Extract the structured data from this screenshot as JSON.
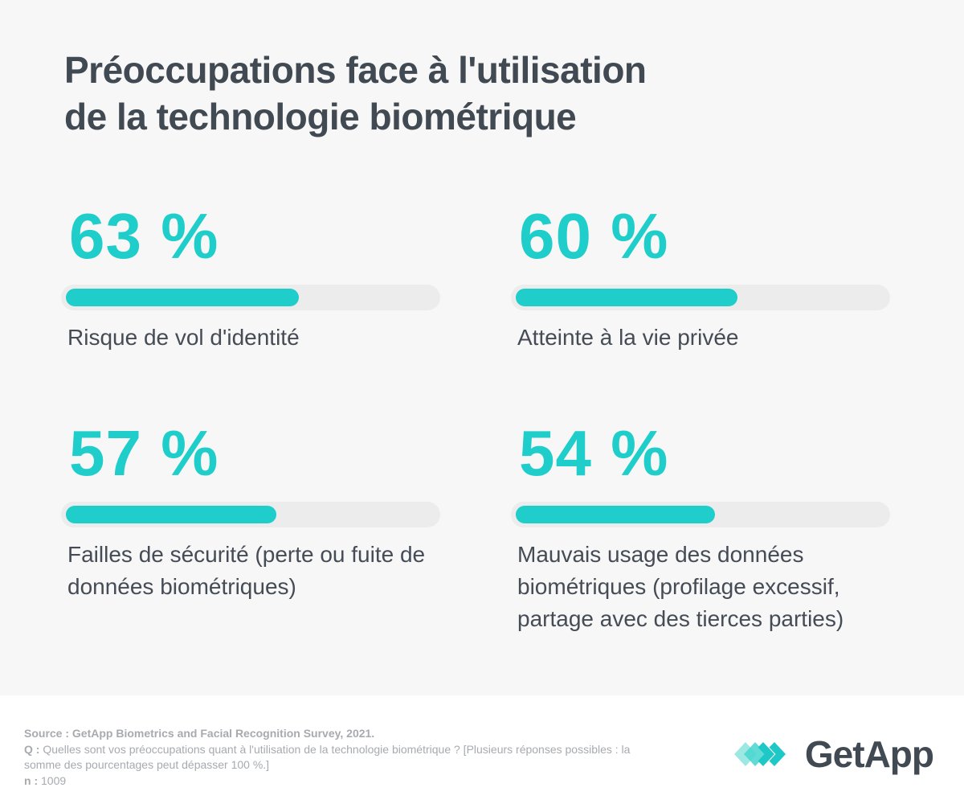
{
  "title_lines": [
    "Préoccupations face à l'utilisation",
    "de la technologie biométrique"
  ],
  "accent_color": "#1fceca",
  "track_color": "#ececec",
  "background_color": "#f7f7f7",
  "chart_data": {
    "type": "bar",
    "title": "Préoccupations face à l'utilisation de la technologie biométrique",
    "categories": [
      "Risque de vol d'identité",
      "Atteinte à la vie privée",
      "Failles de sécurité (perte ou fuite de données biométriques)",
      "Mauvais usage des données biométriques (profilage excessif, partage avec des tierces parties)"
    ],
    "values": [
      63,
      60,
      57,
      54
    ],
    "value_labels": [
      "63 %",
      "60 %",
      "57 %",
      "54 %"
    ],
    "unit": "%",
    "xlim": [
      0,
      100
    ],
    "layout": "2x2 stat grid with rounded progress bars",
    "legend": "none",
    "grid": "off"
  },
  "stats": [
    {
      "value_label": "63 %",
      "pct": 63,
      "label": "Risque de vol d'identité"
    },
    {
      "value_label": "60 %",
      "pct": 60,
      "label": "Atteinte à la vie privée"
    },
    {
      "value_label": "57 %",
      "pct": 57,
      "label": "Failles de sécurité (perte ou fuite de données biométriques)"
    },
    {
      "value_label": "54 %",
      "pct": 54,
      "label": "Mauvais usage des données biométriques (profilage excessif, partage avec des tierces parties)"
    }
  ],
  "footer": {
    "source_line": "Source : GetApp Biometrics and Facial Recognition Survey, 2021.",
    "q_prefix": "Q :",
    "q_text": " Quelles sont vos préoccupations quant à l'utilisation de la technologie biométrique ? [Plusieurs réponses possibles : la somme des pourcentages peut dépasser 100 %.]",
    "n_prefix": "n :",
    "n_value": " 1009",
    "logo_text": "GetApp",
    "logo_icon": "getapp-diamond-chevrons"
  }
}
